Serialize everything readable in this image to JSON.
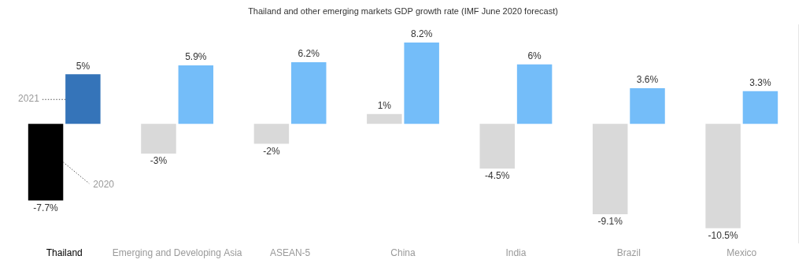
{
  "chart_data": {
    "type": "bar",
    "title": "Thailand and other emerging markets GDP growth rate (IMF June 2020 forecast)",
    "categories": [
      "Thailand",
      "Emerging and Developing Asia",
      "ASEAN-5",
      "China",
      "India",
      "Brazil",
      "Mexico"
    ],
    "series": [
      {
        "name": "2020",
        "colors": [
          "#000000",
          "#d9d9d9",
          "#d9d9d9",
          "#d9d9d9",
          "#d9d9d9",
          "#d9d9d9",
          "#d9d9d9"
        ],
        "values": [
          -7.7,
          -3,
          -2,
          1,
          -4.5,
          -9.1,
          -10.5
        ],
        "value_labels": [
          "-7.7%",
          "-3%",
          "-2%",
          "1%",
          "-4.5%",
          "-9.1%",
          "-10.5%"
        ]
      },
      {
        "name": "2021",
        "colors": [
          "#3574b9",
          "#74bdf9",
          "#74bdf9",
          "#74bdf9",
          "#74bdf9",
          "#74bdf9",
          "#74bdf9"
        ],
        "values": [
          5,
          5.9,
          6.2,
          8.2,
          6,
          3.6,
          3.3
        ],
        "value_labels": [
          "5%",
          "5.9%",
          "6.2%",
          "8.2%",
          "6%",
          "3.6%",
          "3.3%"
        ]
      }
    ],
    "ylim": [
      -12,
      10
    ],
    "grid": false,
    "data_labels": true,
    "tick_labels": "x"
  }
}
